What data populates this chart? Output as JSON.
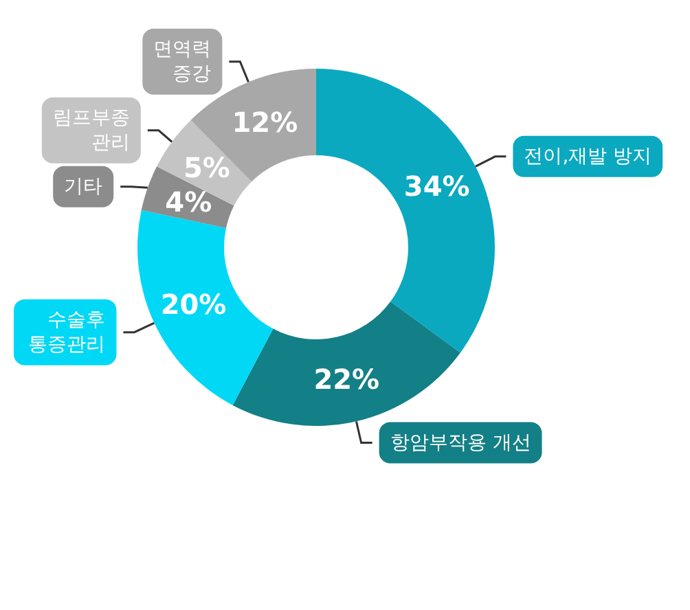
{
  "chart_data": {
    "type": "donut",
    "categories": [
      "전이,재발 방지",
      "항암부작용 개선",
      "수술후\n통증관리",
      "기타",
      "림프부종\n관리",
      "면역력\n증강"
    ],
    "values": [
      34,
      22,
      20,
      4,
      5,
      12
    ],
    "value_labels": [
      "34%",
      "22%",
      "20%",
      "4%",
      "5%",
      "12%"
    ],
    "colors": [
      "#0aa9c0",
      "#137f86",
      "#00d8f5",
      "#8c8c8c",
      "#c4c4c4",
      "#a8a8a8"
    ],
    "legend": false
  }
}
